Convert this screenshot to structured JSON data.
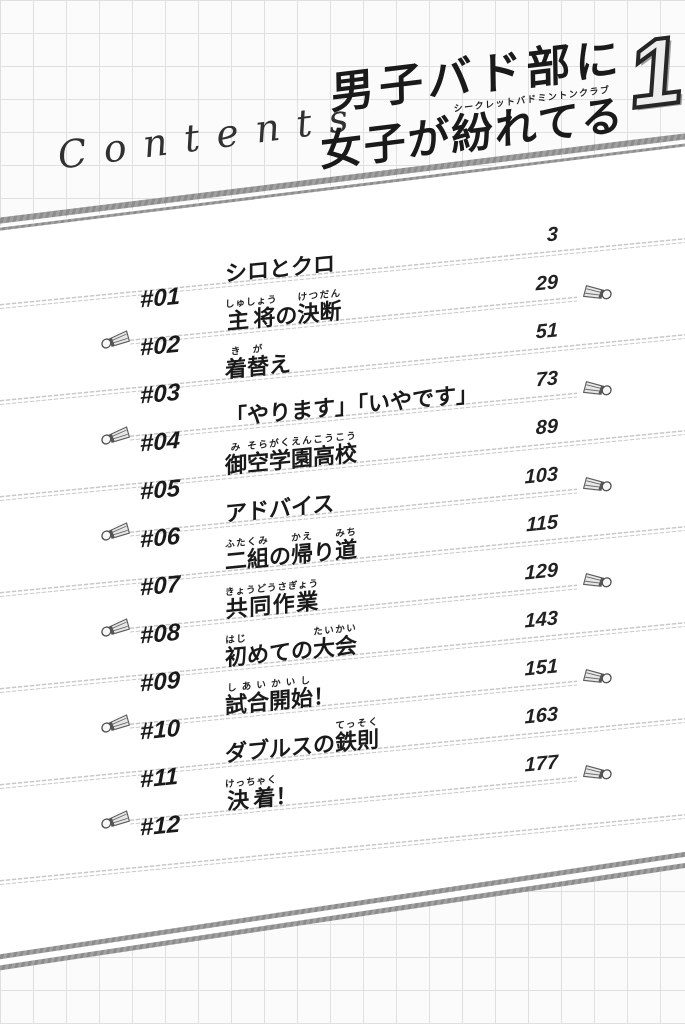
{
  "logo": {
    "title_line1": "男子バド部に",
    "title_line2": "女子が紛れてる",
    "furigana": "シークレットバドミントンクラブ",
    "volume": "1"
  },
  "heading": {
    "text": "Contents"
  },
  "toc": {
    "entries": [
      {
        "num": "#01",
        "page": "3",
        "title": [
          {
            "t": "シロとクロ"
          }
        ]
      },
      {
        "num": "#02",
        "page": "29",
        "title": [
          {
            "t": "主将",
            "r": "しゅしょう"
          },
          {
            "t": "の"
          },
          {
            "t": "決断",
            "r": "けつだん"
          }
        ]
      },
      {
        "num": "#03",
        "page": "51",
        "title": [
          {
            "t": "着",
            "r": "き"
          },
          {
            "t": "替",
            "r": "が"
          },
          {
            "t": "え"
          }
        ]
      },
      {
        "num": "#04",
        "page": "73",
        "title": [
          {
            "t": "「やります」「いやです」"
          }
        ]
      },
      {
        "num": "#05",
        "page": "89",
        "title": [
          {
            "t": "御",
            "r": "み"
          },
          {
            "t": "空",
            "r": "そら"
          },
          {
            "t": "学園高校",
            "r": "がくえんこうこう"
          }
        ]
      },
      {
        "num": "#06",
        "page": "103",
        "title": [
          {
            "t": "アドバイス"
          }
        ]
      },
      {
        "num": "#07",
        "page": "115",
        "title": [
          {
            "t": "二組",
            "r": "ふたくみ"
          },
          {
            "t": "の"
          },
          {
            "t": "帰",
            "r": "かえ"
          },
          {
            "t": "り"
          },
          {
            "t": "道",
            "r": "みち"
          }
        ]
      },
      {
        "num": "#08",
        "page": "129",
        "title": [
          {
            "t": "共同作業",
            "r": "きょうどうさぎょう"
          }
        ]
      },
      {
        "num": "#09",
        "page": "143",
        "title": [
          {
            "t": "初",
            "r": "はじ"
          },
          {
            "t": "めての"
          },
          {
            "t": "大会",
            "r": "たいかい"
          }
        ]
      },
      {
        "num": "#10",
        "page": "151",
        "title": [
          {
            "t": "試合",
            "r": "しあい"
          },
          {
            "t": "開始",
            "r": "かいし"
          },
          {
            "t": "！"
          }
        ]
      },
      {
        "num": "#11",
        "page": "163",
        "title": [
          {
            "t": "ダブルスの"
          },
          {
            "t": "鉄則",
            "r": "てっそく"
          }
        ]
      },
      {
        "num": "#12",
        "page": "177",
        "title": [
          {
            "t": "決着",
            "r": "けっちゃく"
          },
          {
            "t": "！"
          }
        ]
      }
    ]
  },
  "icons": {
    "row_marker": "shuttlecock-icon"
  },
  "colors": {
    "ink": "#1a1a1a",
    "rule_gray": "#8c8c8c",
    "leader_line_gray": "#c8c8c8",
    "grid_line_gray": "#e0e0e0",
    "volume_fill": "#ededed"
  }
}
